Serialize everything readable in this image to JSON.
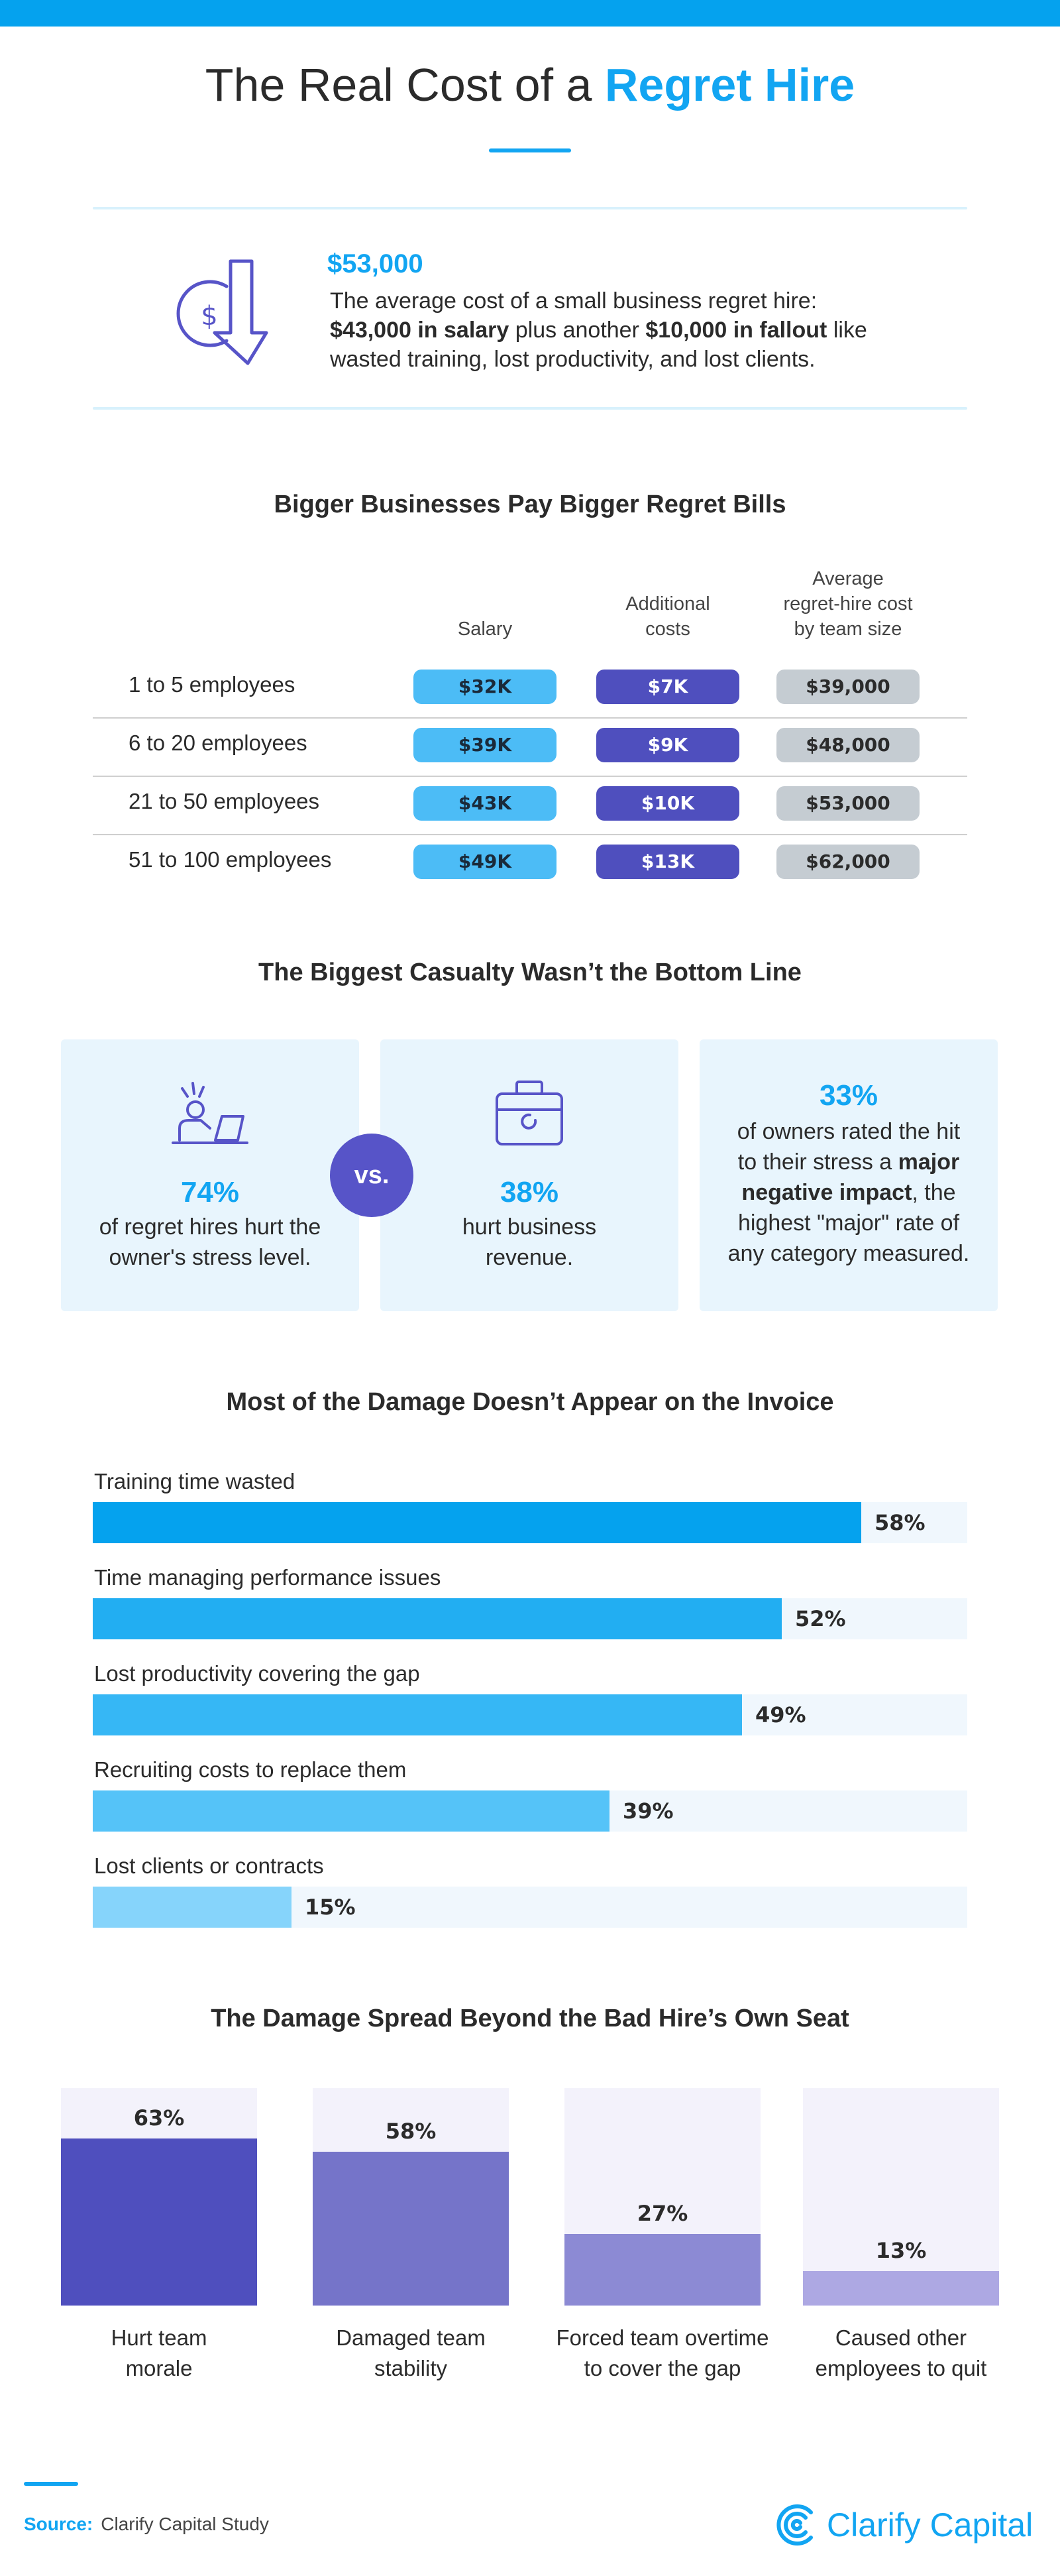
{
  "header": {
    "title_plain": "The Real Cost of a",
    "title_accent": "Regret Hire"
  },
  "intro": {
    "icon": "dollar-down-arrow-icon",
    "amount": "$53,000",
    "text_1": "The average cost of a small business regret hire:",
    "text_2_bold": "$43,000 in salary",
    "text_3": "plus another",
    "text_4_bold": "$10,000 in fallout",
    "text_5": "like wasted training, lost productivity, and lost clients."
  },
  "costs": {
    "title": "Bigger Businesses Pay Bigger Regret Bills",
    "headers": {
      "salary": "Salary",
      "additional_1": "Additional",
      "additional_2": "costs",
      "avg_1": "Average",
      "avg_2": "regret-hire cost",
      "avg_3": "by team size"
    },
    "rows": [
      {
        "label": "1 to 5 employees",
        "salary": "$32K",
        "additional": "$7K",
        "average": "$39,000"
      },
      {
        "label": "6 to 20 employees",
        "salary": "$39K",
        "additional": "$9K",
        "average": "$48,000"
      },
      {
        "label": "21 to 50 employees",
        "salary": "$43K",
        "additional": "$10K",
        "average": "$53,000"
      },
      {
        "label": "51 to 100 employees",
        "salary": "$49K",
        "additional": "$13K",
        "average": "$62,000"
      }
    ]
  },
  "casualty": {
    "title": "The Biggest Casualty Wasn’t the Bottom Line",
    "vs": "vs.",
    "card1": {
      "icon": "stressed-person-at-desk-icon",
      "pct": "74%",
      "line1": "of regret hires hurt the",
      "line2": "owner's stress level."
    },
    "card2": {
      "icon": "briefcase-icon",
      "pct": "38%",
      "line1": "hurt business",
      "line2": "revenue."
    },
    "card3": {
      "pct": "33%",
      "line1": "of owners rated the hit",
      "line2a": "to their stress a",
      "line2b": "major",
      "line3a": "negative impact",
      "line3b": ", the",
      "line4": "highest \"major\" rate of",
      "line5": "any category measured."
    }
  },
  "damage": {
    "title": "Most of the Damage Doesn’t Appear on the Invoice",
    "chart_data": {
      "type": "bar",
      "orientation": "horizontal",
      "categories": [
        "Training time wasted",
        "Time managing performance issues",
        "Lost productivity covering the gap",
        "Recruiting costs to replace them",
        "Lost clients or contracts"
      ],
      "values": [
        58,
        52,
        49,
        39,
        15
      ],
      "labels": [
        "58%",
        "52%",
        "49%",
        "39%",
        "15%"
      ],
      "colors": [
        "#05a2ee",
        "#22aef2",
        "#36b7f5",
        "#55c3f8",
        "#86d4fb"
      ],
      "xlim": [
        0,
        66
      ]
    }
  },
  "spread": {
    "title": "The Damage Spread Beyond the Bad Hire’s Own Seat",
    "chart_data": {
      "type": "bar",
      "orientation": "vertical",
      "categories": [
        [
          "Hurt team",
          "morale"
        ],
        [
          "Damaged team",
          "stability"
        ],
        [
          "Forced team overtime",
          "to cover the gap"
        ],
        [
          "Caused other",
          "employees to quit"
        ]
      ],
      "values": [
        63,
        58,
        27,
        13
      ],
      "labels": [
        "63%",
        "58%",
        "27%",
        "13%"
      ],
      "colors": [
        "#4f4fbe",
        "#7574c9",
        "#8c8ad4",
        "#ada8e3"
      ],
      "ylim": [
        0,
        82
      ]
    }
  },
  "footer": {
    "source_label": "Source:",
    "source_text": "Clarify Capital Study",
    "logo_icon": "clarify-capital-logo-icon",
    "logo_text": "Clarify Capital"
  }
}
